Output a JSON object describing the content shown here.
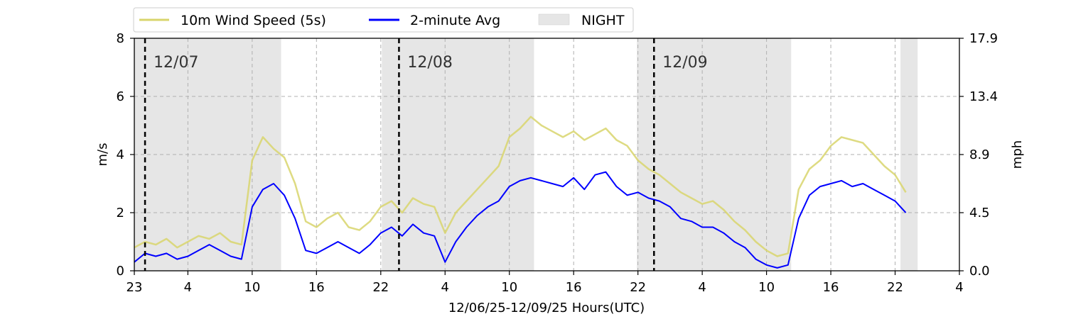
{
  "chart_data": {
    "type": "line",
    "title": "",
    "xlabel": "12/06/25-12/09/25  Hours(UTC)",
    "ylabel_left": "m/s",
    "ylabel_right": "mph",
    "x_unit": "hours since 12/06/25 23:00 UTC",
    "xlim": [
      0,
      77
    ],
    "ylim": [
      0,
      8
    ],
    "x_ticks": [
      {
        "x": 0,
        "label": "23"
      },
      {
        "x": 5,
        "label": "4"
      },
      {
        "x": 11,
        "label": "10"
      },
      {
        "x": 17,
        "label": "16"
      },
      {
        "x": 23,
        "label": "22"
      },
      {
        "x": 29,
        "label": "4"
      },
      {
        "x": 35,
        "label": "10"
      },
      {
        "x": 41,
        "label": "16"
      },
      {
        "x": 47,
        "label": "22"
      },
      {
        "x": 53,
        "label": "4"
      },
      {
        "x": 59,
        "label": "10"
      },
      {
        "x": 65,
        "label": "16"
      },
      {
        "x": 71,
        "label": "22"
      },
      {
        "x": 77,
        "label": "4"
      }
    ],
    "y_ticks_left": [
      {
        "y": 0,
        "label": "0"
      },
      {
        "y": 2,
        "label": "2"
      },
      {
        "y": 4,
        "label": "4"
      },
      {
        "y": 6,
        "label": "6"
      },
      {
        "y": 8,
        "label": "8"
      }
    ],
    "y_ticks_right": [
      {
        "y": 0,
        "label": "0.0"
      },
      {
        "y": 2,
        "label": "4.5"
      },
      {
        "y": 4,
        "label": "8.9"
      },
      {
        "y": 6,
        "label": "13.4"
      },
      {
        "y": 8,
        "label": "17.9"
      }
    ],
    "grid": true,
    "legend": {
      "placement": "top-left (above plot)"
    },
    "night_periods": [
      [
        0,
        13.7
      ],
      [
        23.1,
        37.3
      ],
      [
        46.9,
        61.3
      ],
      [
        71.5,
        73.1
      ]
    ],
    "date_markers": [
      {
        "x": 1.0,
        "label": "12/07"
      },
      {
        "x": 24.7,
        "label": "12/08"
      },
      {
        "x": 48.5,
        "label": "12/09"
      }
    ],
    "series": [
      {
        "name": "10m Wind Speed (5s)",
        "color": "#d8d56c",
        "x": [
          0,
          1,
          2,
          3,
          4,
          5,
          6,
          7,
          8,
          9,
          10,
          11,
          12,
          13,
          14,
          15,
          16,
          17,
          18,
          19,
          20,
          21,
          22,
          23,
          24,
          25,
          26,
          27,
          28,
          29,
          30,
          31,
          32,
          33,
          34,
          35,
          36,
          37,
          38,
          39,
          40,
          41,
          42,
          43,
          44,
          45,
          46,
          47,
          48,
          49,
          50,
          51,
          52,
          53,
          54,
          55,
          56,
          57,
          58,
          59,
          60,
          61,
          62,
          63,
          64,
          65,
          66,
          67,
          68,
          69,
          70,
          71,
          72
        ],
        "values": [
          0.8,
          1.0,
          0.9,
          1.1,
          0.8,
          1.0,
          1.2,
          1.1,
          1.3,
          1.0,
          0.9,
          3.8,
          4.6,
          4.2,
          3.9,
          3.0,
          1.7,
          1.5,
          1.8,
          2.0,
          1.5,
          1.4,
          1.7,
          2.2,
          2.4,
          2.0,
          2.5,
          2.3,
          2.2,
          1.3,
          2.0,
          2.4,
          2.8,
          3.2,
          3.6,
          4.6,
          4.9,
          5.3,
          5.0,
          4.8,
          4.6,
          4.8,
          4.5,
          4.7,
          4.9,
          4.5,
          4.3,
          3.8,
          3.5,
          3.3,
          3.0,
          2.7,
          2.5,
          2.3,
          2.4,
          2.1,
          1.7,
          1.4,
          1.0,
          0.7,
          0.5,
          0.6,
          2.8,
          3.5,
          3.8,
          4.3,
          4.6,
          4.5,
          4.4,
          4.0,
          3.6,
          3.3,
          2.7
        ]
      },
      {
        "name": "2-minute Avg",
        "color": "#0000ff",
        "x": [
          0,
          1,
          2,
          3,
          4,
          5,
          6,
          7,
          8,
          9,
          10,
          11,
          12,
          13,
          14,
          15,
          16,
          17,
          18,
          19,
          20,
          21,
          22,
          23,
          24,
          25,
          26,
          27,
          28,
          29,
          30,
          31,
          32,
          33,
          34,
          35,
          36,
          37,
          38,
          39,
          40,
          41,
          42,
          43,
          44,
          45,
          46,
          47,
          48,
          49,
          50,
          51,
          52,
          53,
          54,
          55,
          56,
          57,
          58,
          59,
          60,
          61,
          62,
          63,
          64,
          65,
          66,
          67,
          68,
          69,
          70,
          71,
          72
        ],
        "values": [
          0.3,
          0.6,
          0.5,
          0.6,
          0.4,
          0.5,
          0.7,
          0.9,
          0.7,
          0.5,
          0.4,
          2.2,
          2.8,
          3.0,
          2.6,
          1.8,
          0.7,
          0.6,
          0.8,
          1.0,
          0.8,
          0.6,
          0.9,
          1.3,
          1.5,
          1.2,
          1.6,
          1.3,
          1.2,
          0.3,
          1.0,
          1.5,
          1.9,
          2.2,
          2.4,
          2.9,
          3.1,
          3.2,
          3.1,
          3.0,
          2.9,
          3.2,
          2.8,
          3.3,
          3.4,
          2.9,
          2.6,
          2.7,
          2.5,
          2.4,
          2.2,
          1.8,
          1.7,
          1.5,
          1.5,
          1.3,
          1.0,
          0.8,
          0.4,
          0.2,
          0.1,
          0.2,
          1.8,
          2.6,
          2.9,
          3.0,
          3.1,
          2.9,
          3.0,
          2.8,
          2.6,
          2.4,
          2.0
        ]
      }
    ]
  },
  "legend_items": {
    "wind": "10m Wind Speed (5s)",
    "avg": "2-minute Avg",
    "night": "NIGHT"
  },
  "colors": {
    "wind": "#d8d56c",
    "avg": "#0000ff",
    "night": "#e6e6e6",
    "grid": "#b0b0b0"
  }
}
